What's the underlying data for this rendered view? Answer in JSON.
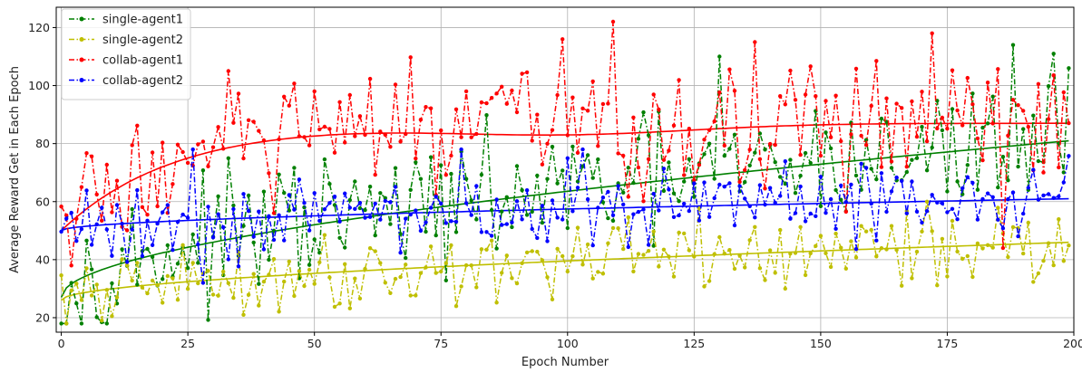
{
  "chart_data": {
    "type": "line",
    "title": "",
    "xlabel": "Epoch Number",
    "ylabel": "Average Reward Get in Each Epoch",
    "xlim": [
      -1,
      200
    ],
    "ylim": [
      15,
      127
    ],
    "xticks": [
      0,
      25,
      50,
      75,
      100,
      125,
      150,
      175,
      200
    ],
    "yticks": [
      20,
      40,
      60,
      80,
      100,
      120
    ],
    "grid": true,
    "legend_position": "top-left",
    "series": [
      {
        "name": "single-agent1",
        "color": "#008000",
        "trend_start": 27,
        "trend_end": 81,
        "trend_shape": "concave",
        "noise": 14,
        "peaks": [
          [
            16,
            43
          ],
          [
            44,
            63
          ],
          [
            130,
            110
          ],
          [
            188,
            114
          ],
          [
            196,
            111
          ],
          [
            199,
            106
          ]
        ]
      },
      {
        "name": "single-agent2",
        "color": "#bfbf00",
        "trend_start": 26,
        "trend_end": 46,
        "trend_shape": "concave",
        "noise": 8,
        "peaks": [
          [
            8,
            19
          ],
          [
            36,
            21
          ],
          [
            78,
            24
          ],
          [
            143,
            30
          ],
          [
            171,
            60
          ]
        ]
      },
      {
        "name": "collab-agent1",
        "color": "#ff0000",
        "trend_start": 50,
        "trend_end": 87,
        "trend_shape": "plateau",
        "noise": 16,
        "peaks": [
          [
            2,
            38
          ],
          [
            33,
            105
          ],
          [
            99,
            116
          ],
          [
            109,
            122
          ],
          [
            172,
            118
          ],
          [
            186,
            44
          ]
        ]
      },
      {
        "name": "collab-agent2",
        "color": "#0000ff",
        "trend_start": 50,
        "trend_end": 61,
        "trend_shape": "concave",
        "noise": 9,
        "peaks": [
          [
            26,
            78
          ],
          [
            28,
            32
          ],
          [
            79,
            78
          ],
          [
            103,
            78
          ]
        ]
      }
    ]
  }
}
